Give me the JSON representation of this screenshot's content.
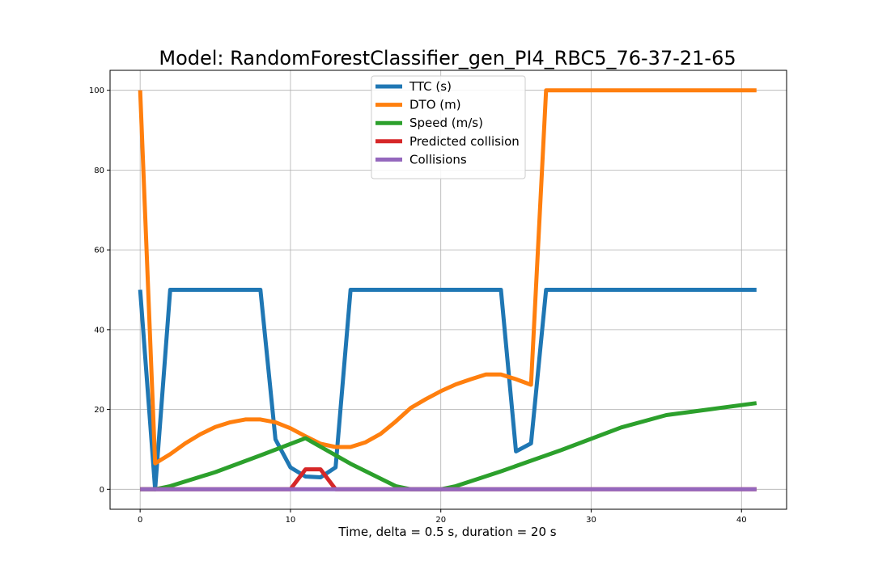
{
  "chart_data": {
    "type": "line",
    "title": "Model: RandomForestClassifier_gen_PI4_RBC5_76-37-21-65",
    "xlabel": "Time, delta = 0.5 s, duration = 20 s",
    "ylabel": "",
    "xlim": [
      -2,
      43
    ],
    "ylim": [
      -5,
      105
    ],
    "xticks": [
      0,
      10,
      20,
      30,
      40
    ],
    "yticks": [
      0,
      20,
      40,
      60,
      80,
      100
    ],
    "grid": true,
    "legend_position": "top-center",
    "series": [
      {
        "name": "TTC (s)",
        "color": "#1f77b4",
        "x": [
          0,
          1,
          2,
          8,
          9,
          10,
          11,
          12,
          13,
          14,
          24,
          25,
          26,
          27,
          41
        ],
        "y": [
          50,
          0,
          50,
          50,
          12.5,
          5.5,
          3.2,
          3,
          5.5,
          50,
          50,
          9.5,
          11.5,
          50,
          50
        ]
      },
      {
        "name": "DTO (m)",
        "color": "#ff7f0e",
        "x": [
          0,
          1,
          2,
          3,
          4,
          5,
          6,
          7,
          8,
          9,
          10,
          11,
          12,
          13,
          14,
          15,
          16,
          17,
          18,
          19,
          20,
          21,
          22,
          23,
          24,
          25,
          26,
          27,
          41
        ],
        "y": [
          100,
          6.5,
          8.8,
          11.5,
          13.8,
          15.6,
          16.8,
          17.5,
          17.5,
          16.8,
          15.3,
          13.3,
          11.4,
          10.6,
          10.6,
          11.8,
          13.9,
          17,
          20.4,
          22.6,
          24.6,
          26.3,
          27.6,
          28.8,
          28.8,
          27.6,
          26.2,
          100,
          100
        ]
      },
      {
        "name": "Speed (m/s)",
        "color": "#2ca02c",
        "x": [
          0,
          1,
          2,
          5,
          8,
          11,
          14,
          17,
          18,
          19,
          20,
          21,
          24,
          28,
          32,
          35,
          38,
          41
        ],
        "y": [
          0,
          0,
          0.8,
          4.3,
          8.5,
          12.8,
          6.4,
          0.8,
          0,
          0,
          0,
          0.8,
          4.5,
          9.8,
          15.5,
          18.6,
          20.1,
          21.6
        ]
      },
      {
        "name": "Predicted collision",
        "color": "#d62728",
        "x": [
          0,
          10,
          11,
          12,
          13,
          41
        ],
        "y": [
          0,
          0,
          5,
          5,
          0,
          0
        ]
      },
      {
        "name": "Collisions",
        "color": "#9467bd",
        "x": [
          0,
          41
        ],
        "y": [
          0,
          0
        ]
      }
    ]
  }
}
